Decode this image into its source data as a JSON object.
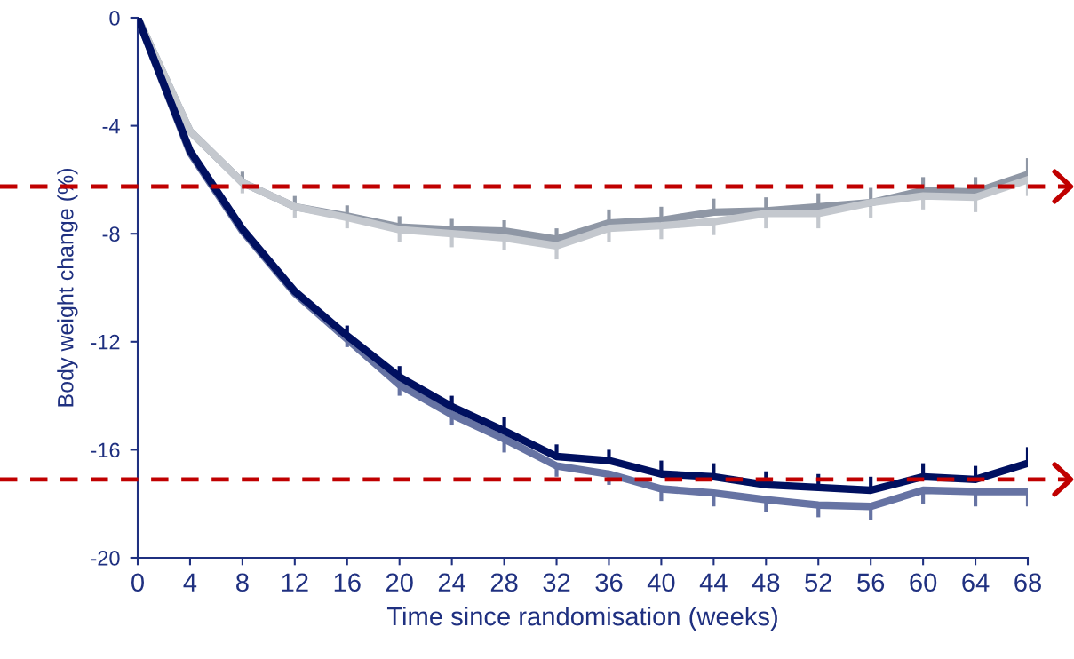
{
  "chart_data": {
    "type": "line",
    "xlabel": "Time since randomisation (weeks)",
    "ylabel": "Body weight change (%)",
    "x": [
      0,
      4,
      8,
      12,
      16,
      20,
      24,
      28,
      32,
      36,
      40,
      44,
      48,
      52,
      56,
      60,
      64,
      68
    ],
    "xlim": [
      0,
      68
    ],
    "xticks": [
      0,
      4,
      8,
      12,
      16,
      20,
      24,
      28,
      32,
      36,
      40,
      44,
      48,
      52,
      56,
      60,
      64,
      68
    ],
    "ylim": [
      -20,
      0
    ],
    "yticks": [
      -20,
      -16,
      -12,
      -8,
      -4,
      0
    ],
    "grid": false,
    "marker": "none",
    "line_style": "solid",
    "series": [
      {
        "color": "#8f97a5",
        "values": [
          0,
          -4.2,
          -6.1,
          -7.0,
          -7.35,
          -7.75,
          -7.85,
          -7.9,
          -8.2,
          -7.6,
          -7.5,
          -7.2,
          -7.15,
          -7.0,
          -6.85,
          -6.4,
          -6.45,
          -5.8
        ],
        "errors": [
          null,
          null,
          [
            -6.1,
            -5.7
          ],
          [
            -7.0,
            -6.6
          ],
          [
            -7.35,
            -6.95
          ],
          [
            -7.75,
            -7.35
          ],
          [
            -7.85,
            -7.45
          ],
          [
            -7.9,
            -7.5
          ],
          [
            -8.2,
            -7.8
          ],
          [
            -7.6,
            -7.1
          ],
          [
            -7.5,
            -7.0
          ],
          [
            -7.2,
            -6.7
          ],
          [
            -7.15,
            -6.65
          ],
          [
            -7.0,
            -6.5
          ],
          [
            -6.85,
            -6.3
          ],
          [
            -6.4,
            -5.9
          ],
          [
            -6.45,
            -5.9
          ],
          [
            -5.8,
            -5.2
          ]
        ]
      },
      {
        "color": "#c4c8ce",
        "values": [
          0,
          -4.2,
          -6.1,
          -7.0,
          -7.4,
          -7.85,
          -8.0,
          -8.15,
          -8.45,
          -7.8,
          -7.7,
          -7.55,
          -7.25,
          -7.25,
          -6.85,
          -6.6,
          -6.65,
          -6.0
        ],
        "errors": [
          null,
          null,
          [
            -6.5,
            -6.1
          ],
          [
            -7.4,
            -7.0
          ],
          [
            -7.8,
            -7.4
          ],
          [
            -8.3,
            -7.85
          ],
          [
            -8.5,
            -8.0
          ],
          [
            -8.6,
            -8.15
          ],
          [
            -8.95,
            -8.45
          ],
          [
            -8.3,
            -7.8
          ],
          [
            -8.2,
            -7.7
          ],
          [
            -8.05,
            -7.55
          ],
          [
            -7.8,
            -7.25
          ],
          [
            -7.8,
            -7.25
          ],
          [
            -7.4,
            -6.85
          ],
          [
            -7.1,
            -6.6
          ],
          [
            -7.2,
            -6.65
          ],
          [
            -6.6,
            -6.0
          ]
        ]
      },
      {
        "color": "#6673a3",
        "values": [
          0,
          -5.0,
          -7.9,
          -10.2,
          -11.9,
          -13.6,
          -14.7,
          -15.6,
          -16.6,
          -16.9,
          -17.45,
          -17.6,
          -17.85,
          -18.05,
          -18.1,
          -17.5,
          -17.55,
          -17.55
        ],
        "errors": [
          null,
          null,
          null,
          null,
          [
            -12.2,
            -11.9
          ],
          [
            -14.0,
            -13.6
          ],
          [
            -15.1,
            -14.7
          ],
          [
            -16.1,
            -15.6
          ],
          [
            -17.0,
            -16.6
          ],
          [
            -17.3,
            -16.9
          ],
          [
            -17.9,
            -17.45
          ],
          [
            -18.1,
            -17.6
          ],
          [
            -18.3,
            -17.85
          ],
          [
            -18.5,
            -18.05
          ],
          [
            -18.6,
            -18.1
          ],
          [
            -18.0,
            -17.5
          ],
          [
            -18.1,
            -17.55
          ],
          [
            -18.1,
            -17.55
          ]
        ]
      },
      {
        "color": "#001060",
        "values": [
          0,
          -4.93,
          -7.83,
          -10.13,
          -11.78,
          -13.3,
          -14.4,
          -15.3,
          -16.25,
          -16.4,
          -16.9,
          -17.0,
          -17.3,
          -17.4,
          -17.5,
          -17.0,
          -17.1,
          -16.5
        ],
        "errors": [
          null,
          null,
          null,
          null,
          [
            -11.78,
            -11.4
          ],
          [
            -13.3,
            -12.9
          ],
          [
            -14.4,
            -14.0
          ],
          [
            -15.3,
            -14.8
          ],
          [
            -16.25,
            -15.8
          ],
          [
            -16.4,
            -16.0
          ],
          [
            -16.9,
            -16.4
          ],
          [
            -17.0,
            -16.5
          ],
          [
            -17.3,
            -16.8
          ],
          [
            -17.4,
            -16.9
          ],
          [
            -17.5,
            -17.0
          ],
          [
            -17.0,
            -16.5
          ],
          [
            -17.1,
            -16.6
          ],
          [
            -16.5,
            -15.9
          ]
        ]
      }
    ],
    "ref_lines": [
      {
        "axis": "y",
        "value": -6.25,
        "color": "#c00000",
        "line_style": "dashed"
      },
      {
        "axis": "y",
        "value": -17.1,
        "color": "#c00000",
        "line_style": "dashed"
      }
    ]
  }
}
